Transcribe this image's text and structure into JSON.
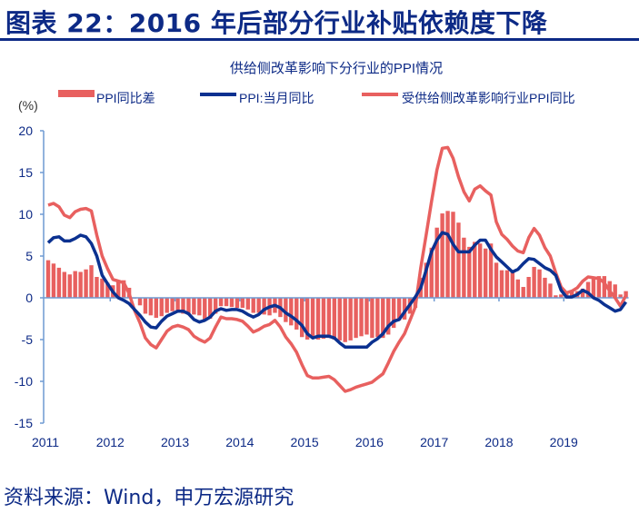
{
  "header": {
    "title": "图表 22：2016 年后部分行业补贴依赖度下降"
  },
  "footer": {
    "source": "资料来源：Wind，申万宏源研究"
  },
  "chart_data": {
    "type": "bar+line",
    "title": "供给侧改革影响下分行业的PPI情况",
    "ylabel": "(%)",
    "ylim": [
      -15,
      20
    ],
    "yticks": [
      20,
      15,
      10,
      5,
      0,
      -5,
      -10,
      -15
    ],
    "xticks": [
      "2011",
      "2012",
      "2013",
      "2014",
      "2015",
      "2016",
      "2017",
      "2018",
      "2019"
    ],
    "x_start": "2011-01",
    "x_end": "2019-12",
    "frequency": "monthly",
    "legend_position": "top",
    "colors": {
      "bar": "#e8605f",
      "ppi": "#0b3190",
      "affected": "#e8605f",
      "axis": "#6f9ad2"
    },
    "series": [
      {
        "name": "PPI同比差",
        "type": "bar",
        "values": [
          4.5,
          4.1,
          3.6,
          3.1,
          2.8,
          3.2,
          3.1,
          3.4,
          3.9,
          2.5,
          2.3,
          1.8,
          1.5,
          2.0,
          2.1,
          1.2,
          -0.1,
          -0.9,
          -1.9,
          -2.1,
          -2.4,
          -2.2,
          -1.8,
          -1.6,
          -1.7,
          -1.9,
          -1.9,
          -2.0,
          -2.1,
          -2.6,
          -2.5,
          -1.9,
          -1.0,
          -1.0,
          -1.1,
          -1.2,
          -1.2,
          -1.4,
          -1.8,
          -1.8,
          -2.0,
          -2.1,
          -1.8,
          -2.3,
          -2.9,
          -3.3,
          -3.8,
          -4.7,
          -5.0,
          -4.8,
          -5.0,
          -4.9,
          -4.8,
          -5.0,
          -5.1,
          -5.3,
          -5.1,
          -4.8,
          -4.6,
          -4.4,
          -4.8,
          -4.7,
          -4.8,
          -4.4,
          -3.6,
          -2.7,
          -2.6,
          -1.9,
          -1.2,
          2.4,
          4.2,
          6.0,
          8.4,
          10.1,
          10.4,
          10.3,
          9.0,
          7.2,
          6.1,
          6.7,
          6.5,
          5.9,
          6.5,
          4.2,
          3.3,
          3.3,
          3.1,
          2.2,
          1.3,
          2.5,
          3.7,
          3.4,
          2.4,
          1.7,
          0.3,
          0.4,
          0.5,
          0.7,
          0.8,
          1.1,
          1.9,
          2.4,
          2.6,
          2.6,
          2.0,
          1.6,
          0.4,
          0.8
        ]
      },
      {
        "name": "PPI:当月同比",
        "type": "line",
        "values": [
          6.6,
          7.2,
          7.3,
          6.8,
          6.8,
          7.1,
          7.5,
          7.3,
          6.5,
          5.0,
          2.7,
          1.7,
          0.7,
          0.0,
          -0.3,
          -0.7,
          -1.4,
          -2.1,
          -2.9,
          -3.5,
          -3.6,
          -2.8,
          -2.2,
          -1.9,
          -1.6,
          -1.6,
          -1.9,
          -2.6,
          -2.9,
          -2.7,
          -2.3,
          -1.6,
          -1.3,
          -1.5,
          -1.4,
          -1.4,
          -1.6,
          -2.0,
          -2.3,
          -2.0,
          -1.4,
          -1.1,
          -0.9,
          -1.2,
          -1.8,
          -2.2,
          -2.7,
          -3.3,
          -4.3,
          -4.8,
          -4.6,
          -4.6,
          -4.6,
          -4.8,
          -5.4,
          -5.9,
          -5.9,
          -5.9,
          -5.9,
          -5.9,
          -5.3,
          -4.9,
          -4.3,
          -3.4,
          -2.8,
          -2.6,
          -1.7,
          -0.8,
          0.1,
          1.2,
          3.3,
          5.5,
          6.9,
          7.8,
          7.6,
          6.4,
          5.5,
          5.5,
          5.5,
          6.3,
          6.9,
          6.9,
          5.8,
          4.9,
          4.3,
          3.7,
          3.1,
          3.4,
          4.1,
          4.7,
          4.6,
          4.1,
          3.6,
          3.3,
          2.7,
          0.9,
          0.1,
          0.1,
          0.4,
          0.9,
          0.6,
          0.0,
          -0.3,
          -0.8,
          -1.2,
          -1.6,
          -1.4,
          -0.5
        ]
      },
      {
        "name": "受供给侧改革影响行业PPI同比",
        "type": "line",
        "values": [
          11.1,
          11.3,
          10.9,
          9.9,
          9.6,
          10.3,
          10.6,
          10.7,
          10.4,
          7.5,
          5.0,
          3.5,
          2.2,
          2.0,
          1.8,
          0.5,
          -1.5,
          -3.0,
          -4.8,
          -5.6,
          -6.0,
          -5.0,
          -4.0,
          -3.5,
          -3.3,
          -3.5,
          -3.8,
          -4.6,
          -5.0,
          -5.3,
          -4.8,
          -3.5,
          -2.3,
          -2.5,
          -2.5,
          -2.6,
          -2.8,
          -3.4,
          -4.1,
          -3.8,
          -3.4,
          -3.2,
          -2.7,
          -3.5,
          -4.7,
          -5.5,
          -6.5,
          -8.0,
          -9.3,
          -9.6,
          -9.6,
          -9.5,
          -9.4,
          -9.8,
          -10.5,
          -11.2,
          -11.0,
          -10.7,
          -10.5,
          -10.3,
          -10.1,
          -9.6,
          -9.1,
          -7.8,
          -6.4,
          -5.3,
          -4.3,
          -2.7,
          -1.1,
          3.6,
          7.5,
          11.5,
          15.3,
          17.9,
          18.0,
          16.7,
          14.5,
          12.7,
          11.6,
          13.0,
          13.4,
          12.8,
          12.3,
          9.1,
          7.6,
          7.0,
          6.2,
          5.6,
          5.4,
          7.2,
          8.3,
          7.5,
          6.0,
          5.0,
          3.0,
          1.3,
          0.6,
          0.8,
          1.2,
          2.0,
          2.5,
          2.4,
          2.3,
          1.8,
          0.8,
          0.0,
          -1.0,
          0.3
        ]
      }
    ]
  }
}
